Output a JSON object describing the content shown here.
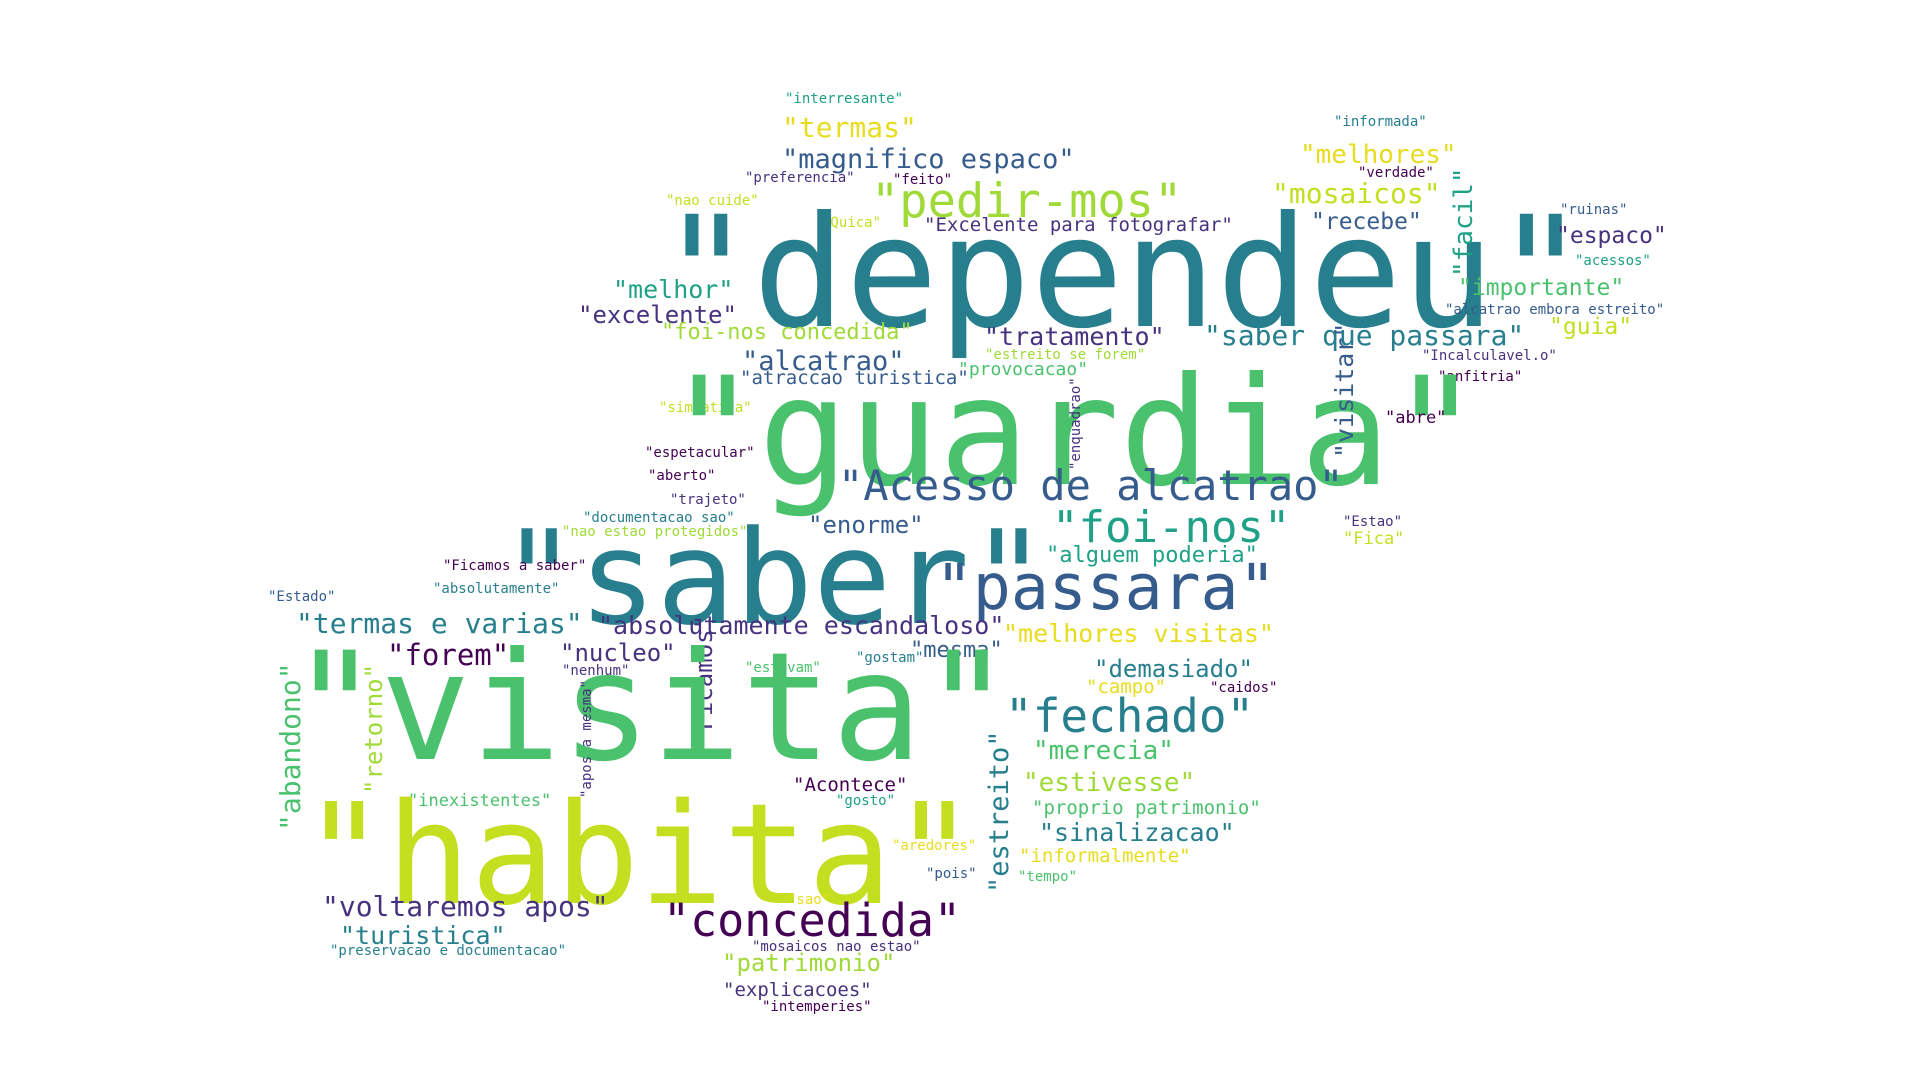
{
  "palette": {
    "c0": "#440154",
    "c1": "#46327e",
    "c2": "#365c8d",
    "c3": "#277f8e",
    "c4": "#1fa187",
    "c5": "#4ac16d",
    "c6": "#a0da39",
    "c7": "#c4de20",
    "c8": "#e8dc1f"
  },
  "words": [
    {
      "text": "\"interresante\"",
      "color": "c4"
    },
    {
      "text": "\"termas\"",
      "color": "c8"
    },
    {
      "text": "\"magnifico espaco\"",
      "color": "c2"
    },
    {
      "text": "\"preferencia\"",
      "color": "c1"
    },
    {
      "text": "\"feito\"",
      "color": "c0"
    },
    {
      "text": "\"pedir-mos\"",
      "color": "c6"
    },
    {
      "text": "\"nao cuide\"",
      "color": "c7"
    },
    {
      "text": "\"Quica\"",
      "color": "c7"
    },
    {
      "text": "\"Excelente para fotografar\"",
      "color": "c1"
    },
    {
      "text": "\"dependeu\"",
      "color": "c3"
    },
    {
      "text": "\"informada\"",
      "color": "c3"
    },
    {
      "text": "\"melhores\"",
      "color": "c8"
    },
    {
      "text": "\"verdade\"",
      "color": "c0"
    },
    {
      "text": "\"mosaicos\"",
      "color": "c7"
    },
    {
      "text": "\"recebe\"",
      "color": "c2"
    },
    {
      "text": "\"facil\"",
      "color": "c4"
    },
    {
      "text": "\"ruinas\"",
      "color": "c2"
    },
    {
      "text": "\"espaco\"",
      "color": "c1"
    },
    {
      "text": "\"acessos\"",
      "color": "c4"
    },
    {
      "text": "\"importante\"",
      "color": "c5"
    },
    {
      "text": "\"alcatrao embora estreito\"",
      "color": "c2"
    },
    {
      "text": "\"guia\"",
      "color": "c7"
    },
    {
      "text": "\"Incalculavel.o\"",
      "color": "c1"
    },
    {
      "text": "\"anfitria\"",
      "color": "c0"
    },
    {
      "text": "\"melhor\"",
      "color": "c4"
    },
    {
      "text": "\"excelente\"",
      "color": "c1"
    },
    {
      "text": "\"foi-nos concedida\"",
      "color": "c6"
    },
    {
      "text": "\"tratamento\"",
      "color": "c1"
    },
    {
      "text": "\"saber que passara\"",
      "color": "c3"
    },
    {
      "text": "\"estreito se forem\"",
      "color": "c6"
    },
    {
      "text": "\"alcatrao\"",
      "color": "c2"
    },
    {
      "text": "\"provocacao\"",
      "color": "c5"
    },
    {
      "text": "\"atraccao turistica\"",
      "color": "c2"
    },
    {
      "text": "\"simpatica\"",
      "color": "c7"
    },
    {
      "text": "\"guardia\"",
      "color": "c5"
    },
    {
      "text": "\"enquadrao\"",
      "color": "c1"
    },
    {
      "text": "\"visitar\"",
      "color": "c2"
    },
    {
      "text": "\"abre\"",
      "color": "c0"
    },
    {
      "text": "\"espetacular\"",
      "color": "c0"
    },
    {
      "text": "\"aberto\"",
      "color": "c0"
    },
    {
      "text": "\"Acesso de alcatrao\"",
      "color": "c2"
    },
    {
      "text": "\"trajeto\"",
      "color": "c1"
    },
    {
      "text": "\"documentacao sao\"",
      "color": "c3"
    },
    {
      "text": "\"nao estao protegidos\"",
      "color": "c6"
    },
    {
      "text": "\"enorme\"",
      "color": "c2"
    },
    {
      "text": "\"foi-nos\"",
      "color": "c4"
    },
    {
      "text": "\"Estao\"",
      "color": "c1"
    },
    {
      "text": "\"Fica\"",
      "color": "c7"
    },
    {
      "text": "\"saber\"",
      "color": "c3"
    },
    {
      "text": "\"alguem poderia\"",
      "color": "c4"
    },
    {
      "text": "\"Ficamos a saber\"",
      "color": "c0"
    },
    {
      "text": "\"absolutamente\"",
      "color": "c3"
    },
    {
      "text": "\"passara\"",
      "color": "c2"
    },
    {
      "text": "\"Estado\"",
      "color": "c2"
    },
    {
      "text": "\"termas e varias\"",
      "color": "c3"
    },
    {
      "text": "\"absolutamente escandaloso\"",
      "color": "c1"
    },
    {
      "text": "\"melhores visitas\"",
      "color": "c8"
    },
    {
      "text": "\"forem\"",
      "color": "c0"
    },
    {
      "text": "\"nucleo\"",
      "color": "c1"
    },
    {
      "text": "\"mesma\"",
      "color": "c2"
    },
    {
      "text": "\"gostam\"",
      "color": "c3"
    },
    {
      "text": "\"Ficamos\"",
      "color": "c1"
    },
    {
      "text": "\"nenhum\"",
      "color": "c1"
    },
    {
      "text": "\"estavam\"",
      "color": "c5"
    },
    {
      "text": "\"demasiado\"",
      "color": "c3"
    },
    {
      "text": "\"campo\"",
      "color": "c8"
    },
    {
      "text": "\"caidos\"",
      "color": "c0"
    },
    {
      "text": "\"visita\"",
      "color": "c5"
    },
    {
      "text": "\"abandono\"",
      "color": "c5"
    },
    {
      "text": "\"retorno\"",
      "color": "c6"
    },
    {
      "text": "\"apos a mesma\"",
      "color": "c1"
    },
    {
      "text": "\"fechado\"",
      "color": "c3"
    },
    {
      "text": "\"merecia\"",
      "color": "c5"
    },
    {
      "text": "\"estreito\"",
      "color": "c3"
    },
    {
      "text": "\"estivesse\"",
      "color": "c6"
    },
    {
      "text": "\"inexistentes\"",
      "color": "c5"
    },
    {
      "text": "\"Acontece\"",
      "color": "c0"
    },
    {
      "text": "\"gosto\"",
      "color": "c4"
    },
    {
      "text": "\"proprio patrimonio\"",
      "color": "c5"
    },
    {
      "text": "\"sinalizacao\"",
      "color": "c3"
    },
    {
      "text": "\"habita\"",
      "color": "c7"
    },
    {
      "text": "\"aredores\"",
      "color": "c8"
    },
    {
      "text": "\"informalmente\"",
      "color": "c8"
    },
    {
      "text": "\"pois\"",
      "color": "c2"
    },
    {
      "text": "\"tempo\"",
      "color": "c5"
    },
    {
      "text": "\"voltaremos apos\"",
      "color": "c1"
    },
    {
      "text": "\"sao\"",
      "color": "c8"
    },
    {
      "text": "\"concedida\"",
      "color": "c0"
    },
    {
      "text": "\"turistica\"",
      "color": "c3"
    },
    {
      "text": "\"preservacao e documentacao\"",
      "color": "c3"
    },
    {
      "text": "\"mosaicos nao estao\"",
      "color": "c1"
    },
    {
      "text": "\"patrimonio\"",
      "color": "c6"
    },
    {
      "text": "\"explicacoes\"",
      "color": "c1"
    },
    {
      "text": "\"intemperies\"",
      "color": "c0"
    }
  ]
}
